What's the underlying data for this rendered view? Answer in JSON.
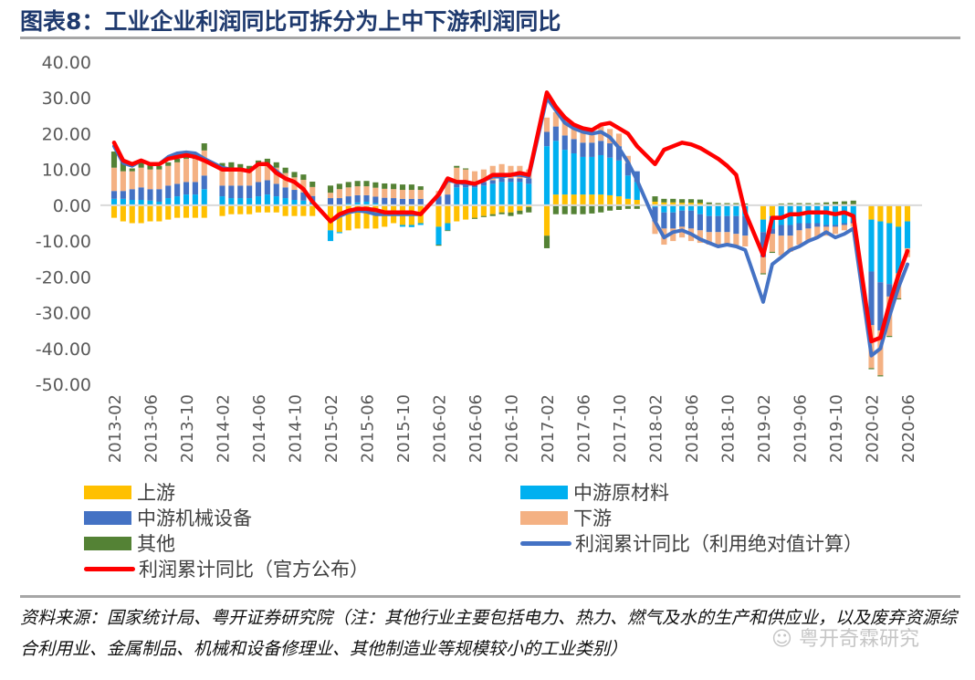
{
  "header": {
    "title": "图表8：工业企业利润同比可拆分为上中下游利润同比"
  },
  "footer": {
    "source": "资料来源：国家统计局、粤开证券研究院（注：其他行业主要包括电力、热力、燃气及水的生产和供应业，以及废弃资源综合利用业、金属制品、机械和设备修理业、其他制造业等规模较小的工业类别）",
    "watermark": "粤开奇霖研究"
  },
  "legend": [
    {
      "label": "上游",
      "type": "bar",
      "color": "#ffc000"
    },
    {
      "label": "中游原材料",
      "type": "bar",
      "color": "#00b0f0"
    },
    {
      "label": "中游机械设备",
      "type": "bar",
      "color": "#4472c4"
    },
    {
      "label": "下游",
      "type": "bar",
      "color": "#f4b183"
    },
    {
      "label": "其他",
      "type": "bar",
      "color": "#548235"
    },
    {
      "label": "利润累计同比（利用绝对值计算）",
      "type": "line",
      "color": "#4472c4"
    },
    {
      "label": "利润累计同比（官方公布）",
      "type": "line",
      "color": "#ff0000"
    }
  ],
  "chart_data": {
    "type": "bar",
    "stacked": true,
    "title": "图表8：工业企业利润同比可拆分为上中下游利润同比",
    "xlabel": "",
    "ylabel": "",
    "ylim": [
      -50,
      40
    ],
    "yticks": [
      40,
      30,
      20,
      10,
      0,
      -10,
      -20,
      -30,
      -40,
      -50
    ],
    "ytick_labels": [
      "40.00",
      "30.00",
      "20.00",
      "10.00",
      "0.00",
      "-10.00",
      "-20.00",
      "-30.00",
      "-40.00",
      "-50.00"
    ],
    "grid": false,
    "legend_position": "bottom",
    "x_tick_labels": [
      "2013-02",
      "2013-06",
      "2013-10",
      "2014-02",
      "2014-06",
      "2014-10",
      "2015-02",
      "2015-06",
      "2015-10",
      "2016-02",
      "2016-06",
      "2016-10",
      "2017-02",
      "2017-06",
      "2017-10",
      "2018-02",
      "2018-06",
      "2018-10",
      "2019-02",
      "2019-06",
      "2019-10",
      "2020-02",
      "2020-06"
    ],
    "categories": [
      "2013-02",
      "2013-03",
      "2013-04",
      "2013-05",
      "2013-06",
      "2013-07",
      "2013-08",
      "2013-09",
      "2013-10",
      "2013-11",
      "2013-12",
      "2014-01",
      "2014-02",
      "2014-03",
      "2014-04",
      "2014-05",
      "2014-06",
      "2014-07",
      "2014-08",
      "2014-09",
      "2014-10",
      "2014-11",
      "2014-12",
      "2015-01",
      "2015-02",
      "2015-03",
      "2015-04",
      "2015-05",
      "2015-06",
      "2015-07",
      "2015-08",
      "2015-09",
      "2015-10",
      "2015-11",
      "2015-12",
      "2016-01",
      "2016-02",
      "2016-03",
      "2016-04",
      "2016-05",
      "2016-06",
      "2016-07",
      "2016-08",
      "2016-09",
      "2016-10",
      "2016-11",
      "2016-12",
      "2017-01",
      "2017-02",
      "2017-03",
      "2017-04",
      "2017-05",
      "2017-06",
      "2017-07",
      "2017-08",
      "2017-09",
      "2017-10",
      "2017-11",
      "2017-12",
      "2018-01",
      "2018-02",
      "2018-03",
      "2018-04",
      "2018-05",
      "2018-06",
      "2018-07",
      "2018-08",
      "2018-09",
      "2018-10",
      "2018-11",
      "2018-12",
      "2019-01",
      "2019-02",
      "2019-03",
      "2019-04",
      "2019-05",
      "2019-06",
      "2019-07",
      "2019-08",
      "2019-09",
      "2019-10",
      "2019-11",
      "2019-12",
      "2020-01",
      "2020-02",
      "2020-03",
      "2020-04",
      "2020-05",
      "2020-06"
    ],
    "series": [
      {
        "name": "上游",
        "kind": "bar",
        "color": "#ffc000",
        "values": [
          -3.5,
          -4.5,
          -5.0,
          -5.0,
          -4.5,
          -4.5,
          -4.0,
          -3.5,
          -3.5,
          -3.5,
          -3.5,
          null,
          -3.0,
          -2.5,
          -2.5,
          -2.5,
          -2.0,
          -2.0,
          -2.0,
          -3.0,
          -3.0,
          -3.0,
          -3.0,
          null,
          -7.0,
          -7.5,
          -7.0,
          -6.5,
          -6.5,
          -6.5,
          -6.0,
          -5.0,
          -5.5,
          -5.5,
          -5.0,
          null,
          -6.0,
          -5.0,
          -4.5,
          -4.0,
          -3.5,
          -3.0,
          -2.5,
          -2.0,
          -2.0,
          -1.5,
          -0.5,
          null,
          -8.5,
          3.0,
          3.0,
          3.0,
          3.0,
          3.0,
          3.0,
          2.8,
          2.5,
          1.8,
          1.5,
          null,
          1.0,
          0.8,
          0.8,
          0.7,
          0.7,
          0.6,
          0.3,
          0.3,
          0.3,
          0.3,
          0.2,
          null,
          -4.0,
          -3.0,
          0.3,
          0.3,
          0.3,
          0.3,
          0.3,
          0.3,
          0.3,
          0.3,
          0.3,
          null,
          -4.0,
          -4.5,
          -5.0,
          -6.0,
          -4.5
        ]
      },
      {
        "name": "中游原材料",
        "kind": "bar",
        "color": "#00b0f0",
        "values": [
          1.8,
          1.8,
          1.5,
          1.5,
          1.3,
          1.0,
          2.0,
          2.5,
          3.0,
          3.0,
          4.5,
          null,
          2.5,
          2.0,
          2.0,
          2.0,
          2.5,
          3.0,
          2.5,
          2.0,
          1.5,
          1.3,
          0.8,
          null,
          -3.0,
          -0.3,
          0.5,
          0.8,
          1.0,
          0.6,
          0.3,
          0.2,
          -0.5,
          -0.6,
          -0.5,
          null,
          -5.0,
          -2.0,
          5.0,
          5.0,
          5.0,
          5.5,
          6.0,
          6.5,
          6.5,
          6.5,
          6.0,
          null,
          16.5,
          15.0,
          12.5,
          11.5,
          10.5,
          10.5,
          11.0,
          10.5,
          10.0,
          6.5,
          5.0,
          null,
          -0.5,
          -2.0,
          -2.0,
          -1.5,
          -1.5,
          -2.5,
          -3.0,
          -3.0,
          -3.0,
          -3.0,
          -3.0,
          null,
          -3.5,
          -3.5,
          -5.5,
          -5.5,
          -5.0,
          -5.0,
          -5.0,
          -5.5,
          -5.5,
          -5.0,
          -4.5,
          null,
          -14.5,
          -17.0,
          -17.0,
          -13.0,
          -7.5
        ]
      },
      {
        "name": "中游机械设备",
        "kind": "bar",
        "color": "#4472c4",
        "values": [
          2.2,
          2.2,
          3.0,
          3.5,
          3.2,
          3.5,
          3.5,
          3.5,
          3.5,
          3.5,
          3.8,
          null,
          3.0,
          3.5,
          3.5,
          3.5,
          4.0,
          4.0,
          3.5,
          3.0,
          2.8,
          2.3,
          1.8,
          null,
          2.0,
          2.0,
          2.0,
          2.0,
          1.8,
          1.8,
          1.8,
          1.8,
          1.8,
          1.8,
          1.8,
          null,
          2.5,
          3.0,
          1.0,
          1.0,
          1.0,
          1.0,
          1.0,
          1.0,
          1.0,
          1.0,
          1.5,
          null,
          4.0,
          4.0,
          4.0,
          4.0,
          4.0,
          4.0,
          4.0,
          4.0,
          4.0,
          3.5,
          3.0,
          null,
          -4.0,
          -4.5,
          -4.5,
          -4.5,
          -5.0,
          -4.5,
          -4.5,
          -4.5,
          -4.5,
          -5.0,
          -5.5,
          null,
          -7.0,
          -1.5,
          -3.0,
          -3.0,
          -2.0,
          -1.5,
          -1.0,
          -0.5,
          -0.5,
          -0.5,
          -0.5,
          null,
          -15.0,
          -13.5,
          -3.5,
          0.0,
          0.0
        ]
      },
      {
        "name": "下游",
        "kind": "bar",
        "color": "#f4b183",
        "values": [
          6.5,
          5.5,
          5.0,
          5.5,
          5.5,
          5.5,
          5.5,
          6.0,
          6.5,
          6.5,
          7.0,
          null,
          4.5,
          4.5,
          4.5,
          4.0,
          4.5,
          4.5,
          4.5,
          4.0,
          3.5,
          3.5,
          2.5,
          null,
          1.5,
          2.5,
          2.5,
          2.5,
          2.5,
          2.5,
          2.5,
          2.5,
          2.5,
          2.5,
          2.5,
          null,
          1.5,
          4.5,
          4.5,
          4.0,
          3.5,
          3.5,
          4.0,
          4.0,
          3.5,
          3.5,
          2.5,
          null,
          4.0,
          4.0,
          4.0,
          4.0,
          4.0,
          4.0,
          4.0,
          4.0,
          3.5,
          2.0,
          0.0,
          null,
          -3.5,
          -4.5,
          -3.5,
          -3.0,
          -3.5,
          -3.5,
          -3.5,
          -3.5,
          -3.5,
          -3.5,
          -3.0,
          null,
          -4.5,
          -5.0,
          -5.5,
          -4.5,
          -4.0,
          -3.5,
          -3.0,
          -2.5,
          -2.0,
          -1.5,
          -1.0,
          null,
          -12.0,
          -12.5,
          -11.0,
          -7.0,
          -2.5
        ]
      },
      {
        "name": "其他",
        "kind": "bar",
        "color": "#548235",
        "values": [
          4.5,
          3.0,
          0.8,
          2.0,
          1.5,
          1.0,
          1.0,
          1.0,
          1.0,
          1.0,
          2.0,
          null,
          1.8,
          2.0,
          1.5,
          1.5,
          1.5,
          1.5,
          1.5,
          1.5,
          1.5,
          1.5,
          1.5,
          null,
          2.0,
          1.5,
          1.5,
          1.5,
          1.5,
          1.5,
          1.5,
          1.5,
          1.5,
          1.5,
          1.0,
          null,
          -0.3,
          -0.2,
          0.5,
          0.3,
          -0.3,
          -0.3,
          -0.5,
          -0.5,
          -1.0,
          -1.0,
          -1.5,
          null,
          -3.5,
          -2.5,
          -2.5,
          -2.5,
          -2.5,
          -2.3,
          -2.0,
          -1.5,
          -1.3,
          -1.0,
          -1.0,
          null,
          1.5,
          1.0,
          1.0,
          1.0,
          1.0,
          1.0,
          0.5,
          0.3,
          0.3,
          0.3,
          0.3,
          null,
          -0.3,
          -0.3,
          0.2,
          0.3,
          0.3,
          0.3,
          0.3,
          0.5,
          0.7,
          0.8,
          1.0,
          null,
          -0.3,
          -0.3,
          -0.3,
          -0.3,
          0.0
        ]
      },
      {
        "name": "利润累计同比（利用绝对值计算）",
        "kind": "line",
        "color": "#4472c4",
        "values": [
          16.5,
          11.8,
          11.0,
          12.5,
          11.5,
          11.5,
          13.5,
          14.5,
          14.8,
          14.5,
          13.0,
          null,
          10.5,
          10.0,
          10.0,
          9.5,
          11.5,
          11.5,
          9.5,
          7.5,
          6.5,
          4.5,
          1.0,
          null,
          -4.5,
          -3.0,
          -2.0,
          -1.5,
          -1.8,
          -2.5,
          -2.5,
          -2.5,
          -2.5,
          -2.5,
          -2.5,
          null,
          3.0,
          7.0,
          6.5,
          6.0,
          6.0,
          7.0,
          8.0,
          8.0,
          8.5,
          8.5,
          8.0,
          null,
          30.0,
          26.5,
          23.0,
          21.5,
          20.5,
          20.0,
          20.5,
          19.0,
          16.0,
          12.0,
          7.0,
          null,
          -4.5,
          -9.0,
          -7.5,
          -7.0,
          -8.0,
          -9.5,
          -10.5,
          -11.5,
          -11.0,
          -11.5,
          -12.5,
          null,
          -27.0,
          -16.5,
          -14.5,
          -12.5,
          -11.5,
          -10.0,
          -9.0,
          -7.5,
          -9.0,
          -8.0,
          -6.5,
          null,
          -42.0,
          -40.0,
          -31.0,
          -23.0,
          -16.5
        ]
      },
      {
        "name": "利润累计同比（官方公布）",
        "kind": "line",
        "color": "#ff0000",
        "values": [
          17.5,
          12.5,
          11.5,
          12.5,
          11.5,
          11.5,
          13.0,
          13.5,
          14.0,
          13.5,
          12.5,
          null,
          10.0,
          10.0,
          10.0,
          9.5,
          11.5,
          11.5,
          9.0,
          7.5,
          6.5,
          4.5,
          1.0,
          null,
          -4.5,
          -2.5,
          -1.5,
          -1.0,
          -1.0,
          -1.3,
          -2.0,
          -2.0,
          -2.0,
          -2.0,
          -2.5,
          null,
          3.0,
          7.5,
          6.5,
          6.5,
          6.0,
          7.0,
          8.5,
          8.5,
          8.5,
          9.0,
          8.5,
          null,
          31.5,
          27.5,
          24.5,
          22.5,
          21.5,
          21.0,
          22.5,
          23.0,
          21.5,
          20.0,
          16.5,
          null,
          11.5,
          15.5,
          16.5,
          17.5,
          17.0,
          16.0,
          14.5,
          13.0,
          11.0,
          8.5,
          -2.0,
          null,
          -14.0,
          -3.5,
          -3.5,
          -2.5,
          -2.5,
          -2.0,
          -2.0,
          -2.0,
          -2.5,
          -2.0,
          -3.0,
          null,
          -38.0,
          -37.0,
          -27.5,
          -19.5,
          -12.8
        ]
      }
    ]
  }
}
